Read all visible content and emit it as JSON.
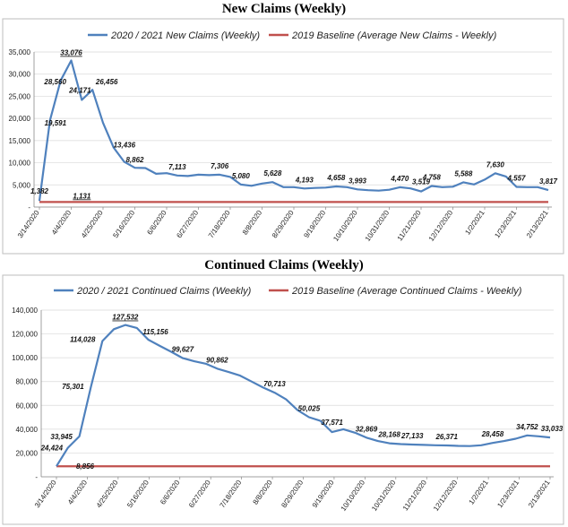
{
  "chart_data": [
    {
      "type": "line",
      "title": "New Claims (Weekly)",
      "xlabel": "",
      "ylabel": "",
      "ylim": [
        0,
        35000
      ],
      "yticks": [
        0,
        5000,
        10000,
        15000,
        20000,
        25000,
        30000,
        35000
      ],
      "ytick_labels": [
        "-",
        "5,000",
        "10,000",
        "15,000",
        "20,000",
        "25,000",
        "30,000",
        "35,000"
      ],
      "x_tick_labels": [
        "3/14/2020",
        "4/4/2020",
        "4/25/2020",
        "5/16/2020",
        "6/6/2020",
        "6/27/2020",
        "7/18/2020",
        "8/8/2020",
        "8/29/2020",
        "9/19/2020",
        "10/10/2020",
        "10/31/2020",
        "11/21/2020",
        "12/12/2020",
        "1/2/2021",
        "1/23/2021",
        "2/13/2021"
      ],
      "grid": true,
      "legend_position": "top",
      "series": [
        {
          "name": "2020 / 2021 New Claims (Weekly)",
          "color": "#4f81bd",
          "values": [
            1382,
            19591,
            28560,
            33076,
            24171,
            26456,
            19000,
            13436,
            10200,
            8862,
            8800,
            7500,
            7650,
            7113,
            7000,
            7306,
            7200,
            7306,
            6800,
            5080,
            4800,
            5300,
            5628,
            4500,
            4500,
            4193,
            4300,
            4400,
            4658,
            4500,
            3993,
            3800,
            3700,
            3900,
            4470,
            4200,
            3519,
            4758,
            4500,
            4600,
            5588,
            5100,
            6200,
            7630,
            6900,
            4557,
            4500,
            4500,
            3817
          ],
          "data_labels": [
            {
              "i": 0,
              "text": "1,382"
            },
            {
              "i": 1,
              "text": "19,591"
            },
            {
              "i": 2,
              "text": "28,560"
            },
            {
              "i": 3,
              "text": "33,076"
            },
            {
              "i": 4,
              "text": "24,171"
            },
            {
              "i": 5,
              "text": "26,456"
            },
            {
              "i": 7,
              "text": "13,436"
            },
            {
              "i": 9,
              "text": "8,862"
            },
            {
              "i": 13,
              "text": "7,113"
            },
            {
              "i": 17,
              "text": "7,306"
            },
            {
              "i": 19,
              "text": "5,080"
            },
            {
              "i": 22,
              "text": "5,628"
            },
            {
              "i": 25,
              "text": "4,193"
            },
            {
              "i": 28,
              "text": "4,658"
            },
            {
              "i": 30,
              "text": "3,993"
            },
            {
              "i": 34,
              "text": "4,470"
            },
            {
              "i": 36,
              "text": "3,519"
            },
            {
              "i": 37,
              "text": "4,758"
            },
            {
              "i": 40,
              "text": "5,588"
            },
            {
              "i": 43,
              "text": "7,630"
            },
            {
              "i": 45,
              "text": "4,557"
            },
            {
              "i": 48,
              "text": "3,817"
            }
          ]
        },
        {
          "name": "2019 Baseline (Average New Claims - Weekly)",
          "color": "#c0504d",
          "constant": 1131,
          "label": "1,131"
        }
      ]
    },
    {
      "type": "line",
      "title": "Continued Claims (Weekly)",
      "xlabel": "",
      "ylabel": "",
      "ylim": [
        0,
        140000
      ],
      "yticks": [
        0,
        20000,
        40000,
        60000,
        80000,
        100000,
        120000,
        140000
      ],
      "ytick_labels": [
        "-",
        "20,000",
        "40,000",
        "60,000",
        "80,000",
        "100,000",
        "120,000",
        "140,000"
      ],
      "x_tick_labels": [
        "3/14/2020",
        "4/4/2020",
        "4/25/2020",
        "5/16/2020",
        "6/6/2020",
        "6/27/2020",
        "7/18/2020",
        "8/8/2020",
        "8/29/2020",
        "9/19/2020",
        "10/10/2020",
        "10/31/2020",
        "11/21/2020",
        "12/12/2020",
        "1/2/2021",
        "1/23/2021",
        "2/13/2021"
      ],
      "grid": true,
      "legend_position": "top",
      "series": [
        {
          "name": "2020 / 2021 Continued Claims (Weekly)",
          "color": "#4f81bd",
          "values": [
            8856,
            24424,
            33945,
            75301,
            114028,
            124000,
            127532,
            125000,
            115156,
            110000,
            105000,
            99627,
            97000,
            95000,
            90862,
            88000,
            85000,
            80000,
            75000,
            70713,
            65000,
            56000,
            50025,
            47000,
            37571,
            40000,
            37000,
            32869,
            30000,
            28168,
            27500,
            27133,
            26800,
            26500,
            26371,
            26000,
            25800,
            26500,
            28458,
            30000,
            32000,
            34752,
            34000,
            33033
          ],
          "data_labels": [
            {
              "i": 0,
              "text": "8,856"
            },
            {
              "i": 1,
              "text": "24,424"
            },
            {
              "i": 2,
              "text": "33,945"
            },
            {
              "i": 3,
              "text": "75,301"
            },
            {
              "i": 4,
              "text": "114,028"
            },
            {
              "i": 6,
              "text": "127,532"
            },
            {
              "i": 8,
              "text": "115,156"
            },
            {
              "i": 11,
              "text": "99,627"
            },
            {
              "i": 14,
              "text": "90,862"
            },
            {
              "i": 19,
              "text": "70,713"
            },
            {
              "i": 22,
              "text": "50,025"
            },
            {
              "i": 24,
              "text": "37,571"
            },
            {
              "i": 27,
              "text": "32,869"
            },
            {
              "i": 29,
              "text": "28,168"
            },
            {
              "i": 31,
              "text": "27,133"
            },
            {
              "i": 34,
              "text": "26,371"
            },
            {
              "i": 38,
              "text": "28,458"
            },
            {
              "i": 41,
              "text": "34,752"
            },
            {
              "i": 43,
              "text": "33,033"
            }
          ]
        },
        {
          "name": "2019 Baseline (Average Continued Claims - Weekly)",
          "color": "#c0504d",
          "constant": 8856,
          "label": ""
        }
      ]
    }
  ]
}
